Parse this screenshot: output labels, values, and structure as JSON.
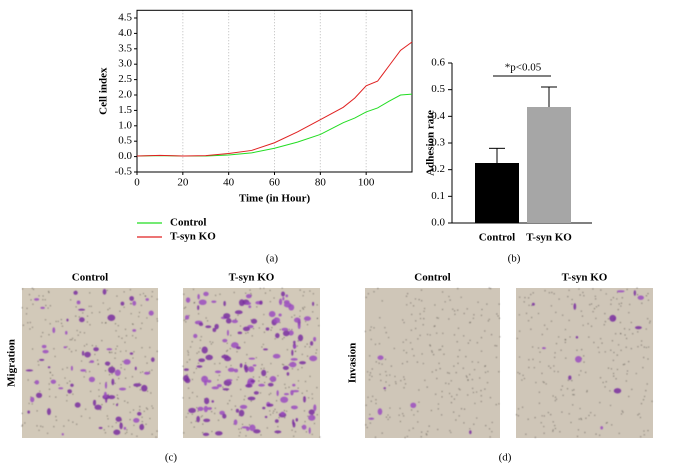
{
  "chart_data": [
    {
      "type": "line",
      "panel_label": "(a)",
      "xlabel": "Time (in Hour)",
      "ylabel": "Cell index",
      "x": [
        0,
        10,
        20,
        30,
        40,
        50,
        60,
        70,
        80,
        90,
        95,
        100,
        105,
        110,
        115,
        120
      ],
      "series": [
        {
          "name": "Control",
          "color": "#22dd22",
          "values": [
            0.02,
            0.03,
            0.02,
            0.02,
            0.05,
            0.12,
            0.27,
            0.47,
            0.72,
            1.1,
            1.25,
            1.45,
            1.58,
            1.8,
            2.0,
            2.03
          ]
        },
        {
          "name": "T-syn KO",
          "color": "#e02020",
          "values": [
            0.02,
            0.04,
            0.02,
            0.03,
            0.1,
            0.2,
            0.45,
            0.8,
            1.2,
            1.6,
            1.9,
            2.3,
            2.45,
            2.95,
            3.45,
            3.72
          ]
        }
      ],
      "xlim": [
        0,
        120
      ],
      "xticks": [
        0,
        20,
        40,
        60,
        80,
        100
      ],
      "ylim": [
        -0.5,
        4.75
      ],
      "yticks": [
        -0.5,
        {
          "value": 0,
          "label": "0.0"
        },
        0.5,
        {
          "value": 1,
          "label": "1.0"
        },
        1.5,
        {
          "value": 2,
          "label": "2.0"
        },
        2.5,
        {
          "value": 3,
          "label": "3.0"
        },
        3.5,
        {
          "value": 4,
          "label": "4.0"
        },
        4.5
      ],
      "grid": true,
      "legend": "bottom-left"
    },
    {
      "type": "bar",
      "panel_label": "(b)",
      "ylabel": "Adhesion rate",
      "categories": [
        "Control",
        "T-syn KO"
      ],
      "values": [
        0.225,
        0.435
      ],
      "errors": [
        0.055,
        0.075
      ],
      "colors": [
        "#000000",
        "#a6a6a6"
      ],
      "ylim": [
        0,
        0.6
      ],
      "yticks": [
        {
          "value": 0,
          "label": "0.0"
        },
        0.1,
        0.2,
        0.3,
        0.4,
        0.5,
        0.6
      ],
      "annotation": "*p<0.05"
    }
  ],
  "image_panels": [
    {
      "label": "(c)",
      "row_label": "Migration",
      "columns": [
        "Control",
        "T-syn KO"
      ]
    },
    {
      "label": "(d)",
      "row_label": "Invasion",
      "columns": [
        "Control",
        "T-syn KO"
      ]
    }
  ]
}
